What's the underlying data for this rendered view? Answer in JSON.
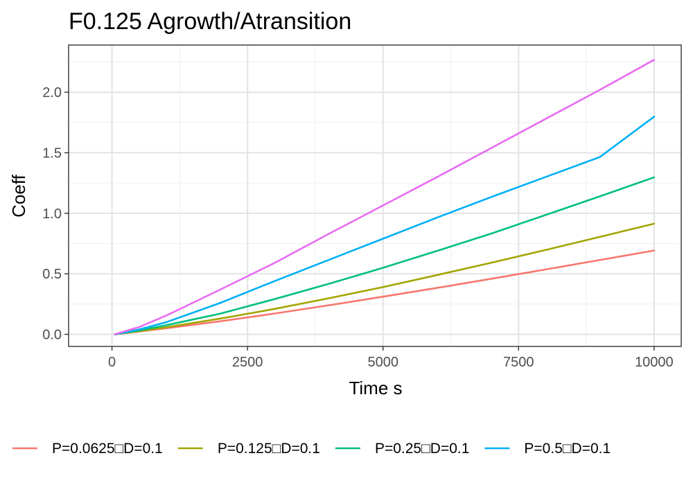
{
  "chart_data": {
    "type": "line",
    "title": "F0.125 Agrowth/Atransition",
    "xlabel": "Time s",
    "ylabel": "Coeff",
    "xlim": [
      -800,
      10500
    ],
    "ylim": [
      -0.1,
      2.39
    ],
    "x_ticks": [
      0,
      2500,
      5000,
      7500,
      10000
    ],
    "x_tick_labels": [
      "0",
      "2500",
      "5000",
      "7500",
      "10000"
    ],
    "y_ticks": [
      0.0,
      0.5,
      1.0,
      1.5,
      2.0
    ],
    "y_tick_labels": [
      "0.0",
      "0.5",
      "1.0",
      "1.5",
      "2.0"
    ],
    "grid": true,
    "legend_position": "bottom",
    "x": [
      50,
      500,
      1000,
      2000,
      3000,
      4000,
      5000,
      6000,
      7000,
      8000,
      9000,
      10000
    ],
    "series": [
      {
        "name": "P=0.0625□D=0.1",
        "color": "#F8766D",
        "values": [
          0.0,
          0.023,
          0.05,
          0.108,
          0.172,
          0.24,
          0.311,
          0.384,
          0.459,
          0.536,
          0.614,
          0.692
        ]
      },
      {
        "name": "P=0.125□D=0.1",
        "color": "#A3A500",
        "values": [
          0.0,
          0.026,
          0.058,
          0.13,
          0.21,
          0.298,
          0.39,
          0.49,
          0.592,
          0.697,
          0.805,
          0.914
        ]
      },
      {
        "name": "P=0.25□D=0.1",
        "color": "#00BF7D",
        "values": [
          0.0,
          0.032,
          0.075,
          0.171,
          0.291,
          0.417,
          0.55,
          0.69,
          0.833,
          0.986,
          1.14,
          1.297
        ]
      },
      {
        "name": "P=0.5□D=0.1",
        "color": "#00B0F6",
        "values": [
          0.0,
          0.04,
          0.1,
          0.26,
          0.44,
          0.615,
          0.79,
          0.965,
          1.135,
          1.3,
          1.465,
          1.798
        ]
      },
      {
        "name": "",
        "color": "#E76BF3",
        "values": [
          0.0,
          0.06,
          0.155,
          0.37,
          0.59,
          0.83,
          1.065,
          1.3,
          1.54,
          1.78,
          2.02,
          2.268
        ]
      }
    ]
  }
}
